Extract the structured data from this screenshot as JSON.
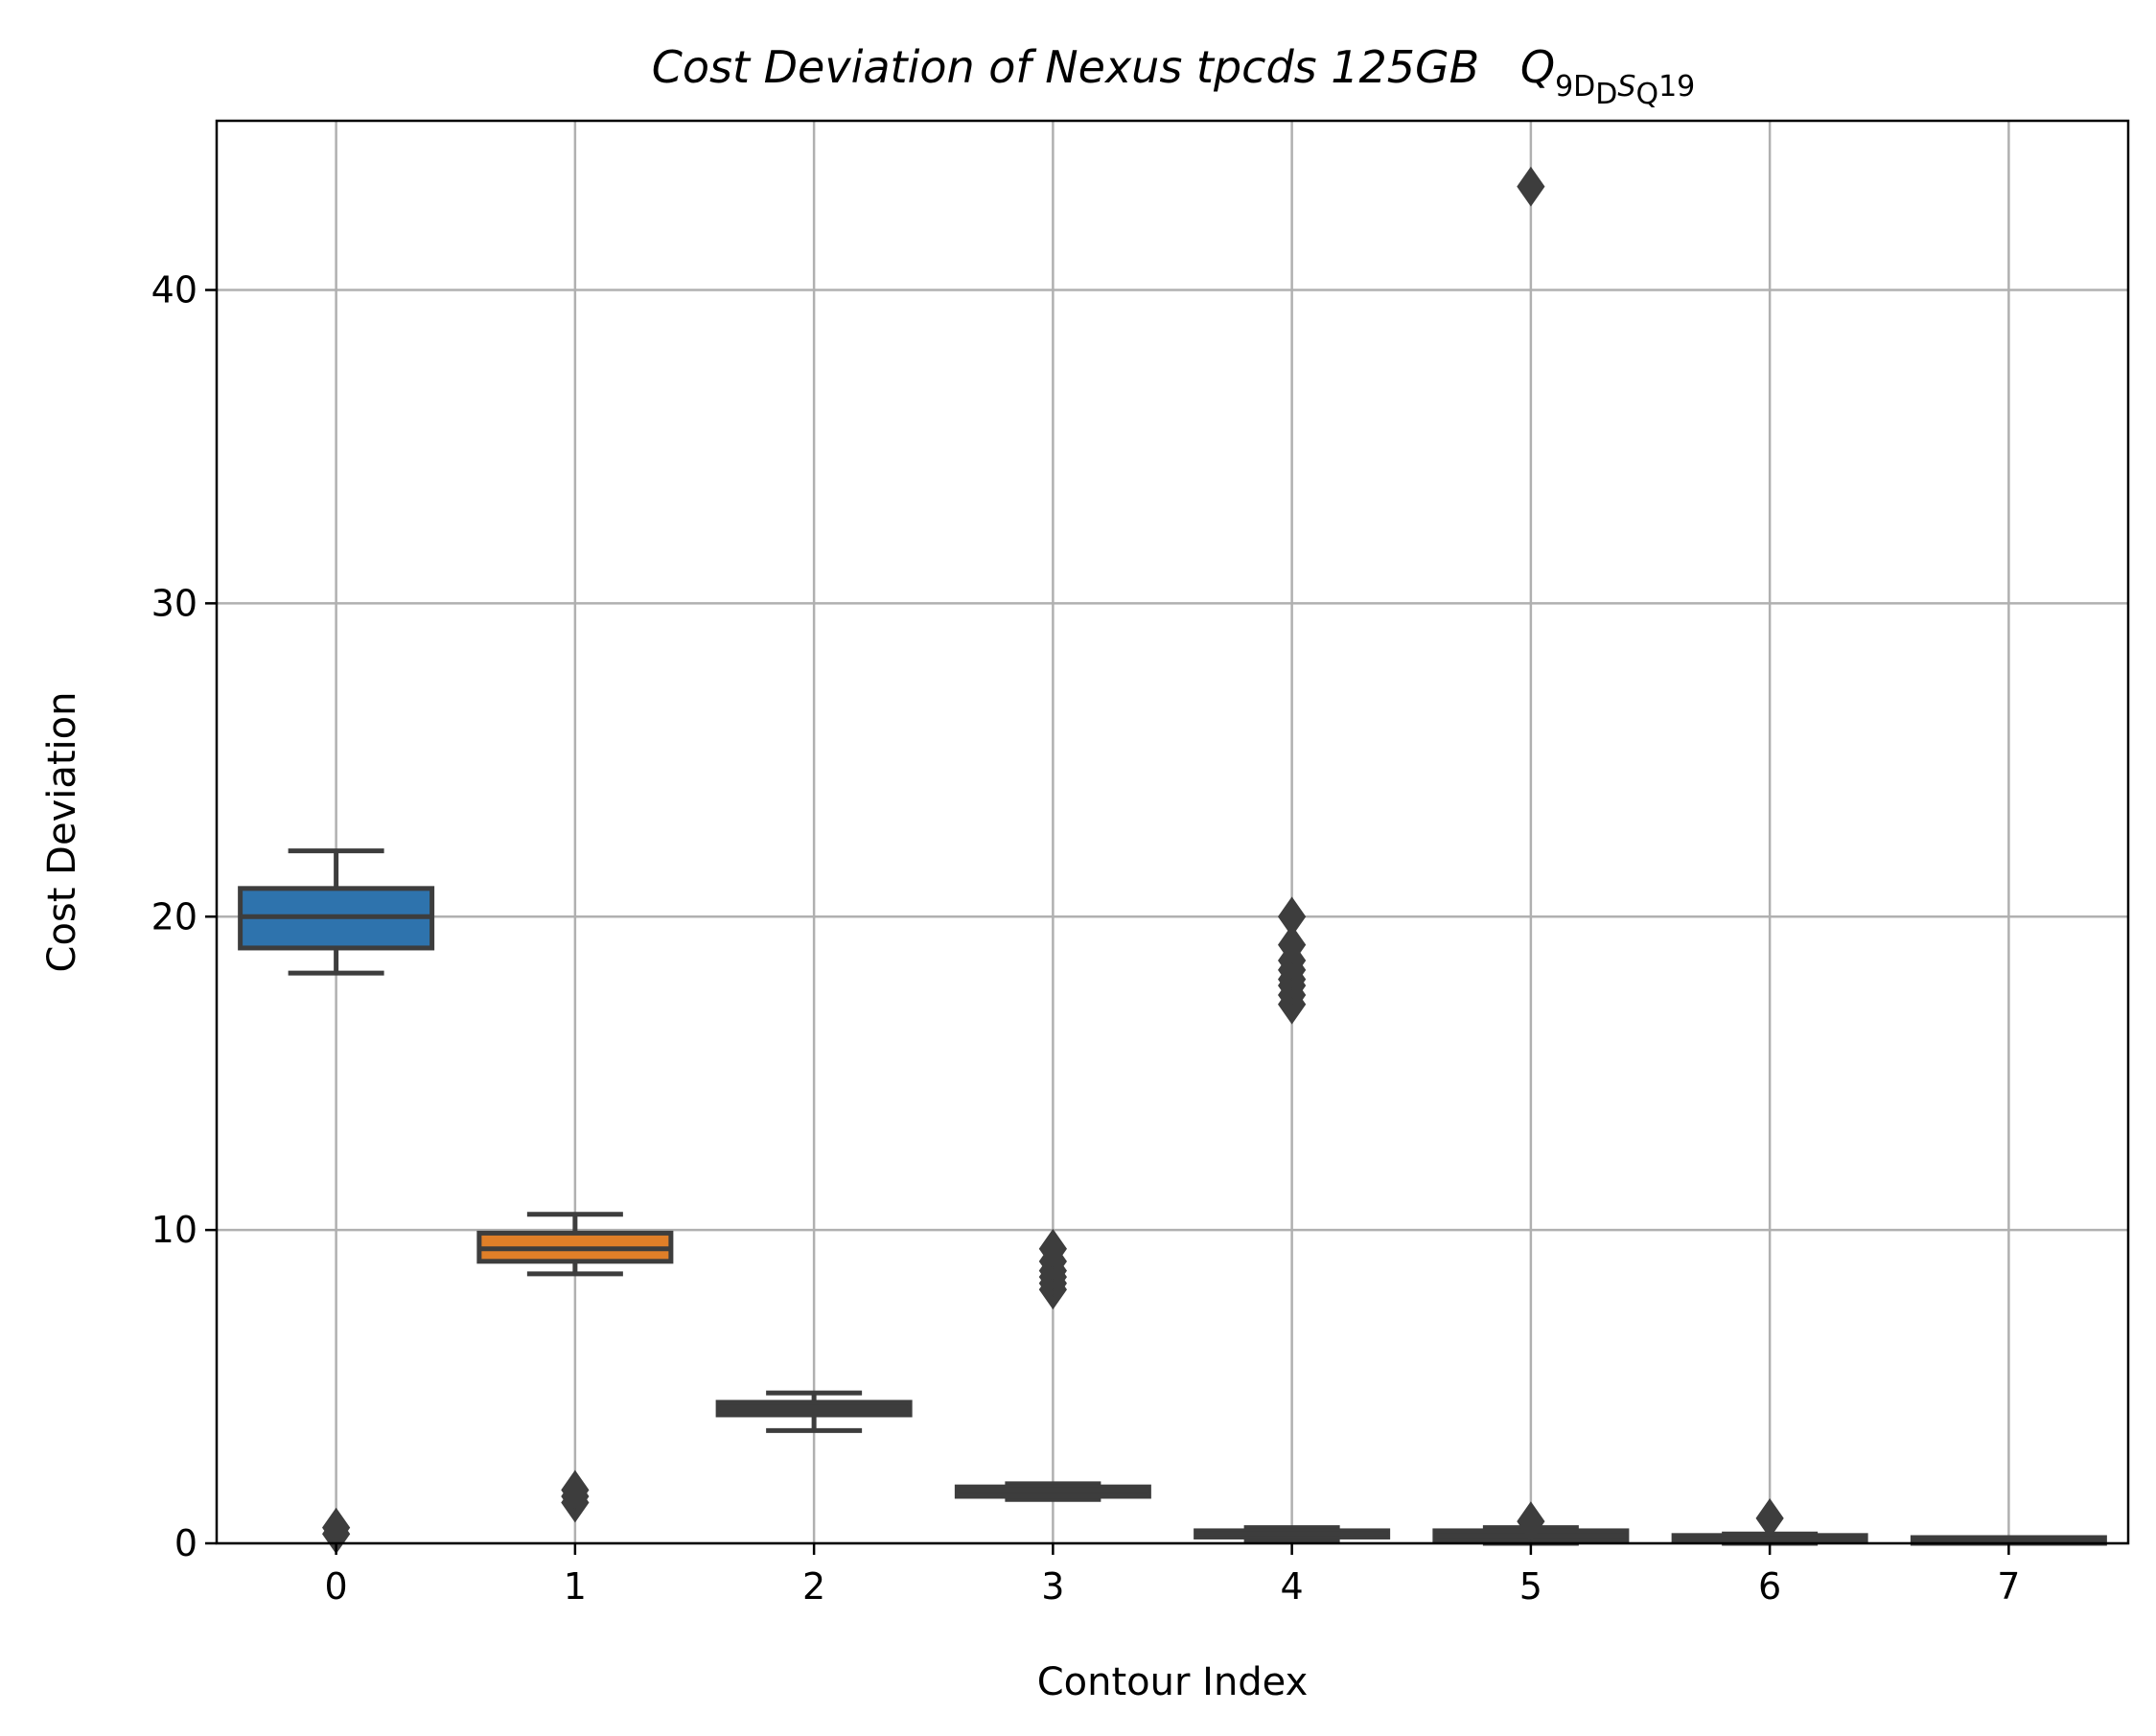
{
  "title": {
    "text": "Cost Deviation of Nexus tpcds  125GB",
    "symbol": "Q",
    "sub_prefix": "9D",
    "sub_sub1": "D",
    "sub_mid": "S",
    "sub_sub2": "Q",
    "suffix": "19"
  },
  "chart_data": {
    "type": "box",
    "title": "Cost Deviation of Nexus tpcds  125GB  Q9D_DS_Q19",
    "xlabel": "Contour Index",
    "ylabel": "Cost Deviation",
    "ylim": [
      0,
      45.4
    ],
    "xlim": [
      -0.5,
      7.5
    ],
    "yticks": [
      0,
      10,
      20,
      30,
      40
    ],
    "grid": true,
    "colors": {
      "line": "#3d3d3d",
      "grid": "#b0b0b0",
      "box_0": "#2e73ad",
      "box_1": "#e07f28"
    },
    "boxes": [
      {
        "category": "0",
        "q1": 19.0,
        "median": 20.0,
        "q3": 20.9,
        "whisker_low": 18.2,
        "whisker_high": 22.1,
        "outliers": [
          0.3,
          0.5
        ]
      },
      {
        "category": "1",
        "q1": 9.0,
        "median": 9.4,
        "q3": 9.9,
        "whisker_low": 8.6,
        "whisker_high": 10.5,
        "outliers": [
          1.3,
          1.5,
          1.7
        ]
      },
      {
        "category": "2",
        "q1": 4.1,
        "median": 4.3,
        "q3": 4.5,
        "whisker_low": 3.6,
        "whisker_high": 4.8,
        "outliers": []
      },
      {
        "category": "3",
        "q1": 1.5,
        "median": 1.7,
        "q3": 1.8,
        "whisker_low": 1.4,
        "whisker_high": 1.9,
        "outliers": [
          8.1,
          8.3,
          8.5,
          8.7,
          9.0,
          9.4
        ]
      },
      {
        "category": "4",
        "q1": 0.2,
        "median": 0.3,
        "q3": 0.4,
        "whisker_low": 0.1,
        "whisker_high": 0.5,
        "outliers": [
          17.2,
          17.5,
          17.8,
          18.0,
          18.3,
          18.6,
          19.1,
          20.0
        ]
      },
      {
        "category": "5",
        "q1": 0.1,
        "median": 0.25,
        "q3": 0.4,
        "whisker_low": 0.0,
        "whisker_high": 0.5,
        "outliers": [
          0.7,
          43.3
        ]
      },
      {
        "category": "6",
        "q1": 0.05,
        "median": 0.15,
        "q3": 0.25,
        "whisker_low": 0.0,
        "whisker_high": 0.3,
        "outliers": [
          0.8
        ]
      },
      {
        "category": "7",
        "q1": 0.0,
        "median": 0.05,
        "q3": 0.1,
        "whisker_low": 0.0,
        "whisker_high": 0.15,
        "outliers": []
      }
    ]
  }
}
